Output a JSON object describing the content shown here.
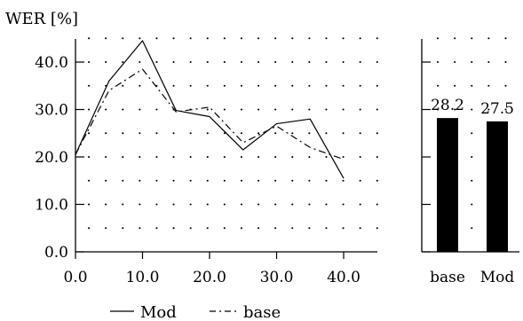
{
  "chart_data": [
    {
      "type": "line",
      "ylabel": "WER [%]",
      "xlabel": "",
      "x": [
        0,
        5,
        10,
        15,
        20,
        25,
        30,
        35,
        40
      ],
      "xticks": [
        "0.0",
        "10.0",
        "20.0",
        "30.0",
        "40.0"
      ],
      "yticks": [
        "0.0",
        "10.0",
        "20.0",
        "30.0",
        "40.0"
      ],
      "xlim": [
        0,
        45
      ],
      "ylim": [
        0,
        45
      ],
      "grid": true,
      "legend_placement": "bottom",
      "series": [
        {
          "name": "Mod",
          "style": "solid",
          "values": [
            20.5,
            36.0,
            44.5,
            29.8,
            28.5,
            21.5,
            27.0,
            28.0,
            15.5
          ]
        },
        {
          "name": "base",
          "style": "dashed",
          "values": [
            20.5,
            34.0,
            38.5,
            29.5,
            30.5,
            23.0,
            26.5,
            22.0,
            19.5
          ]
        }
      ]
    },
    {
      "type": "bar",
      "categories": [
        "base",
        "Mod"
      ],
      "values": [
        28.2,
        27.5
      ],
      "value_labels": [
        "28.2",
        "27.5"
      ],
      "ylim": [
        0,
        45
      ],
      "grid": true
    }
  ],
  "colors": {
    "ink": "#000000",
    "background": "#ffffff"
  }
}
